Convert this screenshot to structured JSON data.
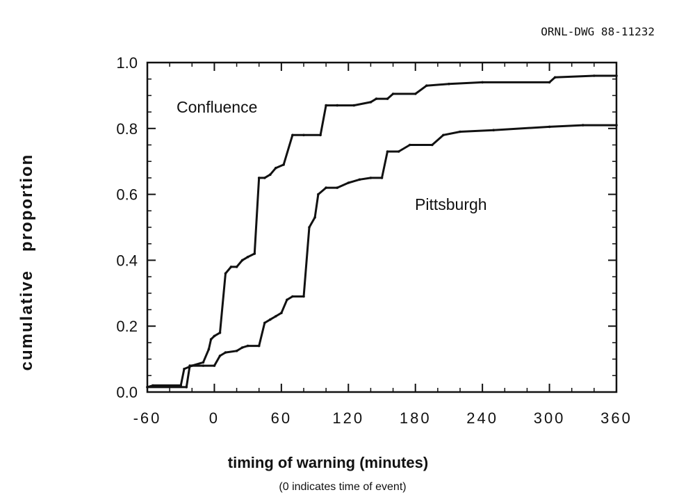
{
  "chart_data": {
    "type": "line",
    "figure_id": "ORNL-DWG 88-11232",
    "title": "",
    "xlabel": "timing of warning (minutes)",
    "xlabel_note": "(0 indicates time of event)",
    "ylabel": "cumulative   proportion",
    "xlim": [
      -60,
      360
    ],
    "ylim": [
      0,
      1.0
    ],
    "x_ticks": [
      -60,
      0,
      60,
      120,
      180,
      240,
      300,
      360
    ],
    "x_tick_labels": [
      "-60",
      "0",
      "60",
      "120",
      "180",
      "240",
      "300",
      "360"
    ],
    "y_ticks": [
      0,
      0.2,
      0.4,
      0.6,
      0.8,
      1.0
    ],
    "y_tick_labels": [
      "0.0",
      "0.2",
      "0.4",
      "0.6",
      "0.8",
      "1.0"
    ],
    "grid": false,
    "legend": "none (series labeled directly on plot)",
    "series": [
      {
        "name": "Confluence",
        "points": [
          [
            -60,
            0.015
          ],
          [
            -55,
            0.02
          ],
          [
            -30,
            0.02
          ],
          [
            -27,
            0.07
          ],
          [
            -20,
            0.08
          ],
          [
            -10,
            0.09
          ],
          [
            -5,
            0.13
          ],
          [
            -3,
            0.16
          ],
          [
            0,
            0.17
          ],
          [
            5,
            0.18
          ],
          [
            10,
            0.36
          ],
          [
            15,
            0.38
          ],
          [
            20,
            0.38
          ],
          [
            25,
            0.4
          ],
          [
            30,
            0.41
          ],
          [
            36,
            0.42
          ],
          [
            40,
            0.65
          ],
          [
            45,
            0.65
          ],
          [
            50,
            0.66
          ],
          [
            55,
            0.68
          ],
          [
            62,
            0.69
          ],
          [
            70,
            0.78
          ],
          [
            80,
            0.78
          ],
          [
            95,
            0.78
          ],
          [
            100,
            0.87
          ],
          [
            110,
            0.87
          ],
          [
            125,
            0.87
          ],
          [
            140,
            0.88
          ],
          [
            145,
            0.89
          ],
          [
            155,
            0.89
          ],
          [
            160,
            0.905
          ],
          [
            180,
            0.905
          ],
          [
            190,
            0.93
          ],
          [
            210,
            0.935
          ],
          [
            240,
            0.94
          ],
          [
            300,
            0.94
          ],
          [
            305,
            0.955
          ],
          [
            340,
            0.96
          ],
          [
            360,
            0.96
          ]
        ]
      },
      {
        "name": "Pittsburgh",
        "points": [
          [
            -60,
            0.015
          ],
          [
            -25,
            0.015
          ],
          [
            -22,
            0.08
          ],
          [
            -10,
            0.08
          ],
          [
            0,
            0.08
          ],
          [
            5,
            0.11
          ],
          [
            10,
            0.12
          ],
          [
            20,
            0.125
          ],
          [
            25,
            0.135
          ],
          [
            30,
            0.14
          ],
          [
            40,
            0.14
          ],
          [
            45,
            0.21
          ],
          [
            50,
            0.22
          ],
          [
            55,
            0.23
          ],
          [
            60,
            0.24
          ],
          [
            65,
            0.28
          ],
          [
            70,
            0.29
          ],
          [
            80,
            0.29
          ],
          [
            85,
            0.5
          ],
          [
            90,
            0.53
          ],
          [
            93,
            0.6
          ],
          [
            100,
            0.62
          ],
          [
            110,
            0.62
          ],
          [
            120,
            0.635
          ],
          [
            130,
            0.645
          ],
          [
            140,
            0.65
          ],
          [
            150,
            0.65
          ],
          [
            155,
            0.73
          ],
          [
            165,
            0.73
          ],
          [
            175,
            0.75
          ],
          [
            195,
            0.75
          ],
          [
            205,
            0.78
          ],
          [
            220,
            0.79
          ],
          [
            250,
            0.795
          ],
          [
            300,
            0.805
          ],
          [
            330,
            0.81
          ],
          [
            360,
            0.81
          ]
        ]
      }
    ]
  },
  "labels": {
    "confluence": "Confluence",
    "pittsburgh": "Pittsburgh"
  }
}
